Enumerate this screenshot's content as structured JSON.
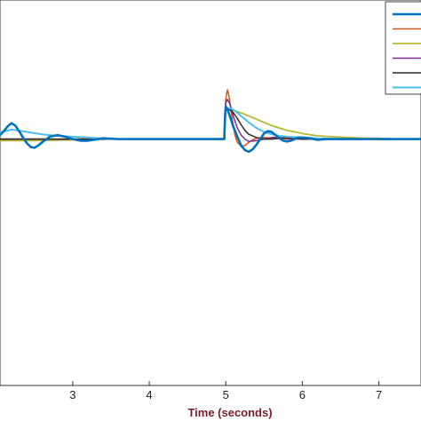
{
  "chart_data": {
    "type": "line",
    "title": "",
    "xlabel": "Time (seconds)",
    "ylabel": "",
    "xlim": [
      2.05,
      7.55
    ],
    "ylim": [
      -3.1,
      1.75
    ],
    "xticks": [
      3,
      4,
      5,
      6,
      7
    ],
    "grid": false,
    "legend": {
      "placement": "top-right"
    },
    "colors": {
      "xlabel": "#7a1c2c"
    },
    "series": [
      {
        "color": "#0072bd",
        "width": 2.6,
        "x": [
          2.0,
          2.05,
          2.1,
          2.15,
          2.2,
          2.25,
          2.3,
          2.35,
          2.4,
          2.45,
          2.5,
          2.55,
          2.6,
          2.7,
          2.8,
          2.9,
          3.0,
          3.1,
          3.2,
          3.4,
          3.6,
          3.8,
          4.0,
          4.5,
          4.98,
          4.99,
          5.0,
          5.02,
          5.05,
          5.1,
          5.15,
          5.2,
          5.25,
          5.3,
          5.35,
          5.4,
          5.45,
          5.5,
          5.55,
          5.6,
          5.65,
          5.7,
          5.75,
          5.8,
          5.85,
          5.9,
          5.95,
          6.0,
          6.1,
          6.2,
          6.3,
          6.4,
          6.6,
          6.8,
          7.0,
          7.55
        ],
        "y": [
          0.02,
          0.05,
          0.1,
          0.16,
          0.2,
          0.17,
          0.1,
          0.02,
          -0.05,
          -0.1,
          -0.11,
          -0.08,
          -0.04,
          0.03,
          0.05,
          0.03,
          0.0,
          -0.02,
          -0.02,
          0.01,
          0.0,
          0.0,
          0.0,
          0.0,
          0.0,
          0.28,
          0.41,
          0.38,
          0.3,
          0.15,
          0.03,
          -0.08,
          -0.14,
          -0.16,
          -0.13,
          -0.07,
          0.0,
          0.07,
          0.1,
          0.09,
          0.05,
          0.01,
          -0.02,
          -0.03,
          -0.02,
          0.0,
          0.02,
          0.02,
          0.01,
          -0.01,
          0.0,
          0.0,
          0.0,
          0.0,
          0.0,
          0.0
        ]
      },
      {
        "color": "#d95319",
        "width": 1.5,
        "x": [
          2.0,
          2.5,
          3.0,
          3.5,
          4.0,
          4.5,
          4.98,
          4.99,
          5.0,
          5.02,
          5.04,
          5.06,
          5.08,
          5.1,
          5.12,
          5.15,
          5.2,
          5.25,
          5.3,
          5.35,
          5.4,
          5.5,
          5.6,
          5.8,
          6.0,
          7.55
        ],
        "y": [
          0.0,
          0.0,
          0.0,
          0.0,
          0.0,
          0.0,
          0.0,
          0.35,
          0.5,
          0.62,
          0.55,
          0.42,
          0.28,
          0.15,
          0.05,
          -0.04,
          -0.09,
          -0.08,
          -0.04,
          -0.01,
          0.01,
          0.02,
          0.01,
          0.0,
          0.0,
          0.0
        ]
      },
      {
        "color": "#b5b832",
        "width": 1.8,
        "x": [
          2.0,
          2.5,
          3.0,
          3.5,
          4.0,
          4.5,
          4.98,
          4.99,
          5.0,
          5.05,
          5.1,
          5.2,
          5.3,
          5.4,
          5.5,
          5.6,
          5.7,
          5.8,
          5.9,
          6.0,
          6.2,
          6.4,
          6.6,
          6.8,
          7.0,
          7.2,
          7.55
        ],
        "y": [
          -0.02,
          -0.02,
          -0.01,
          0.0,
          0.0,
          0.0,
          0.0,
          0.3,
          0.36,
          0.37,
          0.36,
          0.33,
          0.29,
          0.25,
          0.21,
          0.17,
          0.14,
          0.11,
          0.09,
          0.07,
          0.04,
          0.03,
          0.02,
          0.01,
          0.01,
          0.0,
          0.0
        ]
      },
      {
        "color": "#7e2f8e",
        "width": 1.5,
        "x": [
          2.0,
          2.5,
          3.0,
          3.5,
          4.0,
          4.5,
          4.98,
          4.99,
          5.0,
          5.02,
          5.05,
          5.08,
          5.1,
          5.15,
          5.2,
          5.25,
          5.3,
          5.4,
          5.5,
          5.6,
          5.7,
          5.8,
          6.0,
          6.5,
          7.0,
          7.55
        ],
        "y": [
          0.0,
          0.0,
          0.0,
          0.0,
          0.0,
          0.0,
          0.0,
          0.34,
          0.45,
          0.5,
          0.45,
          0.36,
          0.28,
          0.14,
          0.05,
          0.0,
          -0.03,
          -0.02,
          0.0,
          0.02,
          0.02,
          0.01,
          0.0,
          0.0,
          0.0,
          0.0
        ]
      },
      {
        "color": "#2b2b2b",
        "width": 1.5,
        "x": [
          2.0,
          2.5,
          3.0,
          3.5,
          4.0,
          4.5,
          4.98,
          4.99,
          5.0,
          5.05,
          5.1,
          5.15,
          5.2,
          5.25,
          5.3,
          5.4,
          5.5,
          5.6,
          5.7,
          5.8,
          5.9,
          6.0,
          6.3,
          6.6,
          7.0,
          7.55
        ],
        "y": [
          0.0,
          0.0,
          0.0,
          0.0,
          0.0,
          0.0,
          0.0,
          0.3,
          0.36,
          0.37,
          0.33,
          0.26,
          0.18,
          0.11,
          0.06,
          0.02,
          0.0,
          0.0,
          0.01,
          0.02,
          0.01,
          0.0,
          0.0,
          0.0,
          0.0,
          0.0
        ]
      },
      {
        "color": "#4dbeee",
        "width": 2.0,
        "x": [
          2.0,
          2.2,
          2.4,
          2.6,
          2.8,
          3.0,
          3.2,
          3.5,
          4.0,
          4.5,
          4.98,
          4.99,
          5.0,
          5.05,
          5.1,
          5.15,
          5.2,
          5.3,
          5.4,
          5.5,
          5.6,
          5.7,
          5.8,
          6.0,
          6.2,
          6.5,
          7.0,
          7.55
        ],
        "y": [
          0.07,
          0.12,
          0.09,
          0.06,
          0.04,
          0.03,
          0.02,
          0.0,
          0.0,
          0.0,
          0.0,
          0.32,
          0.37,
          0.39,
          0.37,
          0.33,
          0.29,
          0.21,
          0.14,
          0.09,
          0.06,
          0.04,
          0.03,
          0.02,
          0.01,
          0.0,
          0.0,
          0.0
        ]
      }
    ]
  }
}
